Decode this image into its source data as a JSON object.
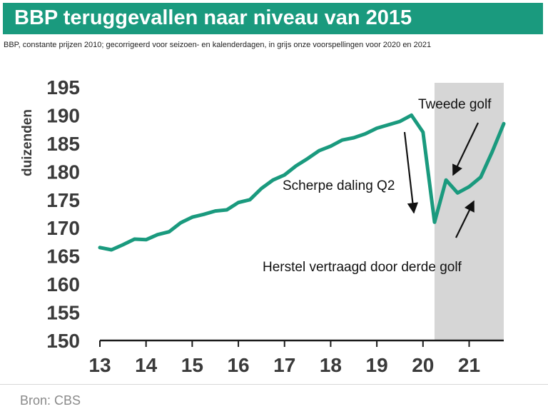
{
  "header": {
    "title": "BBP teruggevallen naar niveau van 2015",
    "subtitle": "BBP, constante prijzen 2010; gecorrigeerd voor seizoen- en kalenderdagen, in grijs onze voorspellingen voor 2020 en 2021"
  },
  "footer": {
    "source": "Bron: CBS"
  },
  "colors": {
    "brand": "#1a9a7e",
    "line": "#1a9a7e",
    "forecast_shade": "#d6d6d6"
  },
  "chart_data": {
    "type": "line",
    "title": "BBP teruggevallen naar niveau van 2015",
    "ylabel": "duizenden",
    "xlabel": "",
    "ylim": [
      150,
      195
    ],
    "xlim": [
      2013,
      2021.75
    ],
    "grid": false,
    "yticks": [
      150,
      155,
      160,
      165,
      170,
      175,
      180,
      185,
      190,
      195
    ],
    "xticks": [
      2013,
      2014,
      2015,
      2016,
      2017,
      2018,
      2019,
      2020,
      2021
    ],
    "xtick_labels": [
      "13",
      "14",
      "15",
      "16",
      "17",
      "18",
      "19",
      "20",
      "21"
    ],
    "shaded_range": {
      "from": 2020.25,
      "to": 2021.75,
      "label": ""
    },
    "series": [
      {
        "name": "",
        "x": [
          2013.0,
          2013.25,
          2013.5,
          2013.75,
          2014.0,
          2014.25,
          2014.5,
          2014.75,
          2015.0,
          2015.25,
          2015.5,
          2015.75,
          2016.0,
          2016.25,
          2016.5,
          2016.75,
          2017.0,
          2017.25,
          2017.5,
          2017.75,
          2018.0,
          2018.25,
          2018.5,
          2018.75,
          2019.0,
          2019.25,
          2019.5,
          2019.75,
          2020.0,
          2020.25,
          2020.5,
          2020.75,
          2021.0,
          2021.25,
          2021.5,
          2021.75
        ],
        "y": [
          166.5,
          166.1,
          167.0,
          168.0,
          167.9,
          168.8,
          169.3,
          170.9,
          171.9,
          172.4,
          173.0,
          173.2,
          174.5,
          175.0,
          177.0,
          178.5,
          179.4,
          181.0,
          182.3,
          183.7,
          184.5,
          185.6,
          186.0,
          186.7,
          187.7,
          188.3,
          188.9,
          190.0,
          187.0,
          171.0,
          178.5,
          176.2,
          177.3,
          179.0,
          183.5,
          188.5
        ]
      }
    ],
    "annotations": [
      {
        "text": "Tweede golf",
        "points_to": [
          2020.75,
          176.0
        ]
      },
      {
        "text": "Scherpe daling Q2",
        "points_to": [
          2019.75,
          172.0
        ]
      },
      {
        "text": "Herstel vertraagd door derde golf",
        "points_to": [
          2021.1,
          176.0
        ]
      }
    ]
  }
}
